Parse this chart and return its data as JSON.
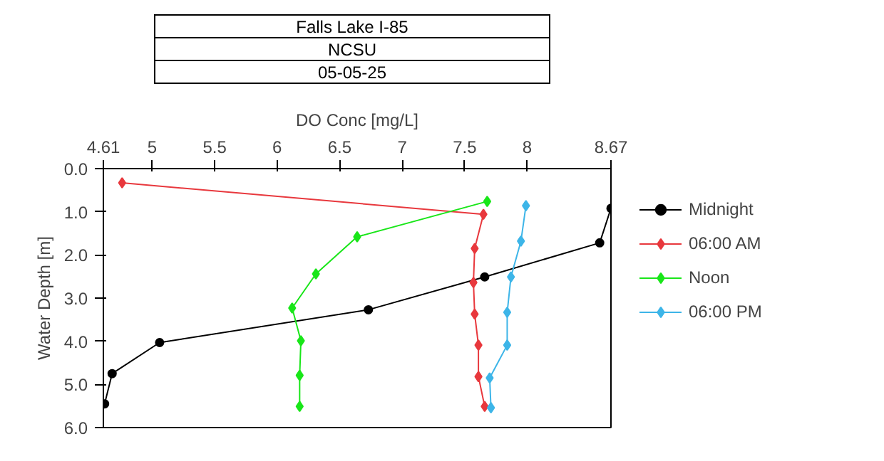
{
  "chart_data": {
    "type": "line",
    "title": "Falls Lake I-85",
    "subtitle": [
      "NCSU",
      "05-05-25"
    ],
    "xlabel": "DO Conc [mg/L]",
    "ylabel": "Water Depth [m]",
    "xlim": [
      4.61,
      8.67
    ],
    "xticks": [
      4.61,
      5,
      5.5,
      6,
      6.5,
      7,
      7.5,
      8,
      8.67
    ],
    "ylim": [
      6,
      0
    ],
    "yticks": [
      {
        "value": 0,
        "label": "0.0"
      },
      {
        "value": 1,
        "label": "1.0"
      },
      {
        "value": 2,
        "label": "2.0"
      },
      {
        "value": 3,
        "label": "3.0"
      },
      {
        "value": 4,
        "label": "4.0"
      },
      {
        "value": 5,
        "label": "5.0"
      },
      {
        "value": 6,
        "label": "6.0"
      }
    ],
    "grid": false,
    "legend": "top right",
    "line_style": "solid",
    "marker": "circle",
    "series": [
      {
        "name": "Midnight",
        "color": "#000000",
        "marker": "circle",
        "x": [
          8.67,
          8.58,
          7.66,
          6.73,
          5.06,
          4.68,
          4.62
        ],
        "values": [
          0.92,
          1.72,
          2.51,
          3.27,
          4.03,
          4.75,
          5.45
        ]
      },
      {
        "name": "06:00 AM",
        "color": "#e8383d",
        "marker": "diamond",
        "x": [
          4.76,
          7.65,
          7.58,
          7.57,
          7.58,
          7.61,
          7.61,
          7.66
        ],
        "values": [
          0.33,
          1.06,
          1.85,
          2.64,
          3.37,
          4.09,
          4.82,
          5.51
        ]
      },
      {
        "name": "Noon",
        "color": "#19e619",
        "marker": "diamond",
        "x": [
          7.68,
          6.64,
          6.31,
          6.12,
          6.19,
          6.18,
          6.18
        ],
        "values": [
          0.76,
          1.58,
          2.44,
          3.23,
          3.99,
          4.79,
          5.51
        ]
      },
      {
        "name": "06:00 PM",
        "color": "#3db5e8",
        "marker": "diamond",
        "x": [
          7.99,
          7.95,
          7.87,
          7.84,
          7.84,
          7.7,
          7.71
        ],
        "values": [
          0.86,
          1.68,
          2.51,
          3.33,
          4.09,
          4.85,
          5.54
        ]
      }
    ]
  }
}
